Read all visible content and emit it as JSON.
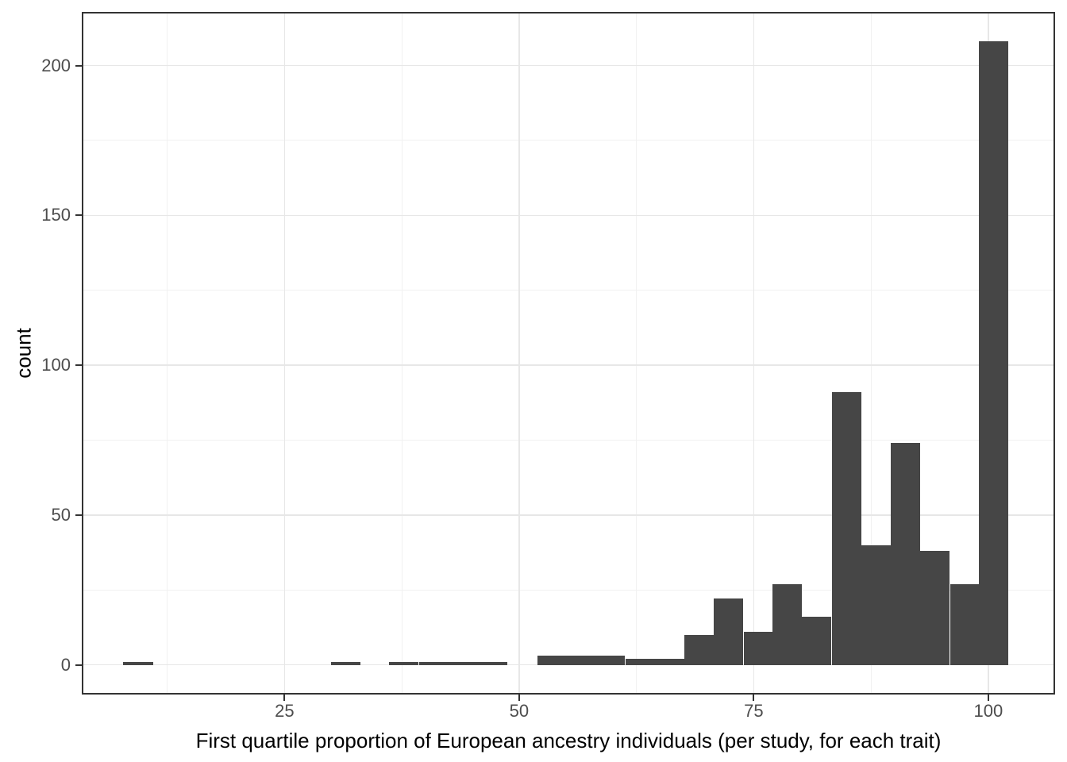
{
  "chart_data": {
    "type": "histogram",
    "title": "",
    "xlabel": "First quartile proportion of European ancestry individuals (per study, for each trait)",
    "ylabel": "count",
    "bar_color": "#464646",
    "grid": "major+minor",
    "legend": "none",
    "bin_width": 3.14,
    "bin_centers": [
      9.4,
      12.6,
      15.7,
      18.9,
      22.0,
      25.2,
      28.3,
      31.5,
      34.6,
      37.7,
      40.9,
      44.0,
      47.2,
      50.3,
      53.5,
      56.6,
      59.7,
      62.9,
      66.0,
      69.2,
      72.3,
      75.5,
      78.6,
      81.7,
      84.9,
      88.0,
      91.2,
      94.3,
      97.5,
      100.6
    ],
    "counts": [
      1,
      0,
      0,
      0,
      0,
      0,
      0,
      1,
      0,
      1,
      1,
      1,
      1,
      0,
      3,
      3,
      3,
      2,
      2,
      10,
      22,
      11,
      27,
      16,
      91,
      40,
      74,
      38,
      27,
      208
    ],
    "x_axis": {
      "ticks": [
        25,
        50,
        75,
        100
      ],
      "tick_labels": [
        "25",
        "50",
        "75",
        "100"
      ],
      "minor_ticks": [
        12.5,
        37.5,
        62.5,
        87.5
      ],
      "range": [
        3.39,
        107.12
      ]
    },
    "y_axis": {
      "ticks": [
        0,
        50,
        100,
        150,
        200
      ],
      "tick_labels": [
        "0",
        "50",
        "100",
        "150",
        "200"
      ],
      "minor_ticks": [
        25,
        75,
        125,
        175
      ],
      "range": [
        -9.93,
        217.9
      ]
    }
  },
  "colors": {
    "background": "#ffffff",
    "bar_fill": "#464646",
    "panel_border": "#333333",
    "grid_major": "#e7e7e7",
    "grid_minor": "#f1f1f1",
    "axis_text": "#4d4d4d",
    "axis_title": "#000000"
  }
}
